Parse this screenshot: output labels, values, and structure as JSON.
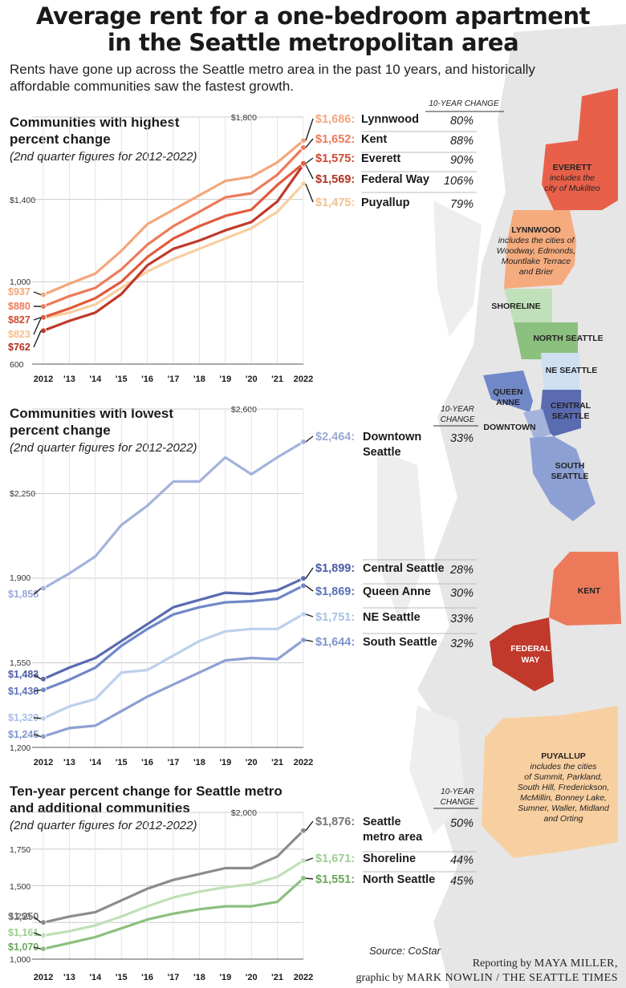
{
  "title_line1": "Average rent for a one-bedroom apartment",
  "title_line2": "in the Seattle metropolitan area",
  "dek": "Rents have gone up across the Seattle metro area in the past 10 years, and historically affordable communities saw the fastest growth.",
  "source": "Source: CoStar",
  "credit_line1_prefix": "Reporting by",
  "credit_line1_name": "MAYA MILLER,",
  "credit_line2_prefix": "graphic by",
  "credit_line2_name": "MARK NOWLIN / THE SEATTLE TIMES",
  "change_header_single": "10-YEAR CHANGE",
  "change_header_line1": "10-YEAR",
  "change_header_line2": "CHANGE",
  "colors": {
    "background_map": "#e8e8e8",
    "water": "#ffffff"
  },
  "chart_data": [
    {
      "type": "line",
      "title_line1": "Communities with highest",
      "title_line2": "percent change",
      "subtitle": "(2nd quarter figures for 2012-2022)",
      "x": [
        "2012",
        "'13",
        "'14",
        "'15",
        "'16",
        "'17",
        "'18",
        "'19",
        "'20",
        "'21",
        "2022"
      ],
      "yticks": [
        "$1,800",
        "$1,400",
        "1,000",
        "600"
      ],
      "ylim": [
        600,
        1800
      ],
      "series": [
        {
          "name": "Lynnwood",
          "color": "#f4a67a",
          "label_color": "#f4a67a",
          "values": [
            937,
            990,
            1040,
            1150,
            1280,
            1350,
            1420,
            1490,
            1510,
            1580,
            1686
          ],
          "start_label": "$937",
          "end_label": "$1,686:",
          "change": "80%"
        },
        {
          "name": "Kent",
          "color": "#ec7a5a",
          "label_color": "#ec7a5a",
          "values": [
            880,
            930,
            970,
            1060,
            1180,
            1270,
            1340,
            1410,
            1430,
            1520,
            1652
          ],
          "start_label": "$880",
          "end_label": "$1,652:",
          "change": "88%"
        },
        {
          "name": "Everett",
          "color": "#e05a3c",
          "label_color": "#cc4a30",
          "values": [
            827,
            870,
            920,
            1000,
            1120,
            1210,
            1270,
            1320,
            1350,
            1470,
            1575
          ],
          "start_label": "$827",
          "end_label": "$1,575:",
          "change": "90%"
        },
        {
          "name": "Federal Way",
          "color": "#c0392b",
          "label_color": "#b03020",
          "values": [
            762,
            810,
            850,
            940,
            1080,
            1160,
            1200,
            1250,
            1290,
            1390,
            1569
          ],
          "start_label": "$762",
          "end_label": "$1,569:",
          "change": "106%"
        },
        {
          "name": "Puyallup",
          "color": "#f8cfa0",
          "label_color": "#f3c08e",
          "values": [
            823,
            850,
            890,
            970,
            1050,
            1110,
            1160,
            1210,
            1260,
            1340,
            1475
          ],
          "start_label": "$823",
          "end_label": "$1,475:",
          "change": "79%"
        }
      ]
    },
    {
      "type": "line",
      "title_line1": "Communities with lowest",
      "title_line2": "percent change",
      "subtitle": "(2nd quarter figures for 2012-2022)",
      "x": [
        "2012",
        "'13",
        "'14",
        "'15",
        "'16",
        "'17",
        "'18",
        "'19",
        "'20",
        "'21",
        "2022"
      ],
      "yticks": [
        "$2,600",
        "$2,250",
        "1,900",
        "1,550",
        "1,200"
      ],
      "ylim": [
        1200,
        2600
      ],
      "series": [
        {
          "name": "Downtown Seattle",
          "name_line1": "Downtown",
          "name_line2": "Seattle",
          "color": "#a3b3dc",
          "label_color": "#9aaad6",
          "values": [
            1858,
            1920,
            1990,
            2120,
            2200,
            2300,
            2300,
            2400,
            2330,
            2400,
            2464
          ],
          "start_label": "$1,858",
          "end_label": "$2,464:",
          "change": "33%"
        },
        {
          "name": "Central Seattle",
          "color": "#5a6bb0",
          "label_color": "#4a5ba8",
          "values": [
            1483,
            1530,
            1570,
            1640,
            1710,
            1780,
            1810,
            1840,
            1835,
            1850,
            1899
          ],
          "start_label": "$1,483",
          "end_label": "$1,899:",
          "change": "28%"
        },
        {
          "name": "Queen Anne",
          "color": "#7088c8",
          "label_color": "#5a70b8",
          "values": [
            1438,
            1480,
            1530,
            1620,
            1690,
            1750,
            1780,
            1800,
            1805,
            1815,
            1869
          ],
          "start_label": "$1,438",
          "end_label": "$1,869:",
          "change": "30%"
        },
        {
          "name": "NE Seattle",
          "color": "#bcd0ec",
          "label_color": "#a8c0e6",
          "values": [
            1320,
            1370,
            1400,
            1510,
            1520,
            1580,
            1640,
            1680,
            1690,
            1690,
            1751
          ],
          "start_label": "$1,320",
          "end_label": "$1,751:",
          "change": "33%"
        },
        {
          "name": "South Seattle",
          "color": "#8da0d4",
          "label_color": "#8094cc",
          "values": [
            1245,
            1280,
            1290,
            1350,
            1410,
            1460,
            1510,
            1560,
            1570,
            1565,
            1644
          ],
          "start_label": "$1,245",
          "end_label": "$1,644:",
          "change": "32%"
        }
      ]
    },
    {
      "type": "line",
      "title_line1": "Ten-year percent change for Seattle metro",
      "title_line2": "and additional communities",
      "subtitle": "(2nd quarter figures for 2012-2022)",
      "x": [
        "2012",
        "'13",
        "'14",
        "'15",
        "'16",
        "'17",
        "'18",
        "'19",
        "'20",
        "'21",
        "2022"
      ],
      "yticks": [
        "$2,000",
        "1,750",
        "1,500",
        "1,250",
        "1,000"
      ],
      "ylim": [
        1000,
        2000
      ],
      "series": [
        {
          "name": "Seattle metro area",
          "name_line1": "Seattle",
          "name_line2": "metro area",
          "color": "#8c8c8c",
          "label_color": "#777777",
          "values": [
            1250,
            1290,
            1320,
            1400,
            1480,
            1540,
            1580,
            1620,
            1620,
            1700,
            1876
          ],
          "start_label": "$1,250",
          "end_label": "$1,876:",
          "change": "50%"
        },
        {
          "name": "Shoreline",
          "color": "#bfe0b8",
          "label_color": "#9ccf92",
          "values": [
            1161,
            1190,
            1230,
            1290,
            1360,
            1420,
            1460,
            1490,
            1510,
            1560,
            1671
          ],
          "start_label": "$1,161",
          "end_label": "$1,671:",
          "change": "44%"
        },
        {
          "name": "North Seattle",
          "color": "#8cc07f",
          "label_color": "#6aa85c",
          "values": [
            1070,
            1110,
            1150,
            1210,
            1270,
            1310,
            1340,
            1360,
            1360,
            1390,
            1551
          ],
          "start_label": "$1,070",
          "end_label": "$1,551:",
          "change": "45%"
        }
      ]
    }
  ],
  "map": {
    "regions": [
      {
        "name": "EVERETT",
        "note": "includes the city of Mukilteo",
        "note_line1": "includes the",
        "note_line2": "city of Mukilteo",
        "color": "#e8604a"
      },
      {
        "name": "LYNNWOOD",
        "note_line1": "includes the cities of",
        "note_line2": "Woodway, Edmonds,",
        "note_line3": "Mountlake Terrace",
        "note_line4": "and Brier",
        "color": "#f5ab7e"
      },
      {
        "name": "SHORELINE",
        "color": "#bfe0b8"
      },
      {
        "name": "NORTH SEATTLE",
        "color": "#8cc07f"
      },
      {
        "name": "NE SEATTLE",
        "color": "#cfdff2"
      },
      {
        "name": "QUEEN",
        "name2": "ANNE",
        "color": "#7088c8"
      },
      {
        "name": "CENTRAL",
        "name2": "SEATTLE",
        "color": "#5a6bb0"
      },
      {
        "name": "DOWNTOWN",
        "color": "#a3b3dc"
      },
      {
        "name": "SOUTH",
        "name2": "SEATTLE",
        "color": "#8da0d4"
      },
      {
        "name": "KENT",
        "color": "#ec7a5a"
      },
      {
        "name": "FEDERAL",
        "name2": "WAY",
        "color": "#c0392b"
      },
      {
        "name": "PUYALLUP",
        "note_line1": "includes the cities",
        "note_line2": "of Summit, Parkland,",
        "note_line3": "South Hill, Frederickson,",
        "note_line4": "McMillin,  Bonney Lake,",
        "note_line5": "Sumner, Waller, Midland",
        "note_line6": "and Orting",
        "color": "#f8cfa0"
      }
    ]
  }
}
